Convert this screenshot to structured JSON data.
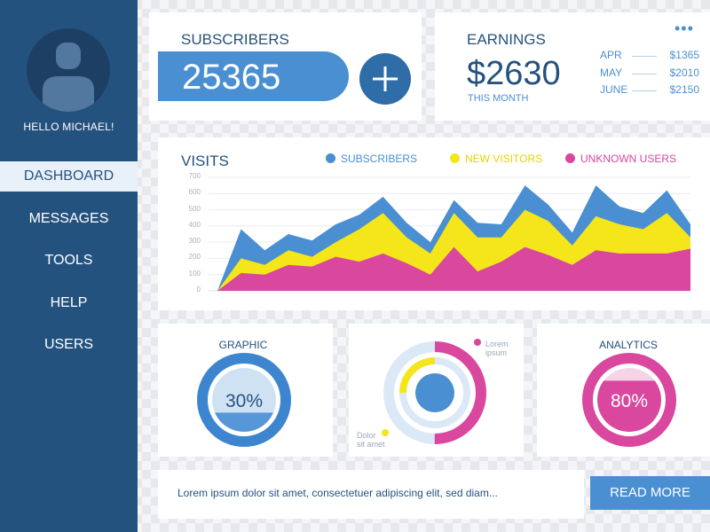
{
  "sidebar": {
    "greeting": "HELLO MICHAEL!",
    "items": [
      {
        "label": "DASHBOARD",
        "active": true
      },
      {
        "label": "MESSAGES",
        "active": false
      },
      {
        "label": "TOOLS",
        "active": false
      },
      {
        "label": "HELP",
        "active": false
      },
      {
        "label": "USERS",
        "active": false
      }
    ]
  },
  "subscribers": {
    "title": "SUBSCRIBERS",
    "value": "25365",
    "add_icon": "plus-icon"
  },
  "earnings": {
    "title": "EARNINGS",
    "value": "$2630",
    "subtitle": "THIS MONTH",
    "rows": [
      {
        "month": "APR",
        "value": "$1365"
      },
      {
        "month": "MAY",
        "value": "$2010"
      },
      {
        "month": "JUNE",
        "value": "$2150"
      }
    ],
    "menu_icon": "more-dots-icon"
  },
  "visits": {
    "title": "VISITS",
    "legend": [
      {
        "label": "SUBSCRIBERS",
        "color": "#4a8fd1"
      },
      {
        "label": "NEW VISITORS",
        "color": "#f4e61a"
      },
      {
        "label": "UNKNOWN USERS",
        "color": "#d9479e"
      }
    ]
  },
  "chart_data": {
    "type": "area",
    "title": "VISITS",
    "xlabel": "",
    "ylabel": "",
    "ylim": [
      0,
      700
    ],
    "yticks": [
      0,
      100,
      200,
      300,
      400,
      500,
      600,
      700
    ],
    "grid": true,
    "legend_position": "top",
    "x": [
      0,
      1,
      2,
      3,
      4,
      5,
      6,
      7,
      8,
      9,
      10,
      11,
      12,
      13,
      14,
      15,
      16,
      17,
      18,
      19,
      20
    ],
    "series": [
      {
        "name": "SUBSCRIBERS",
        "color": "#4a8fd1",
        "values": [
          0,
          380,
          250,
          350,
          310,
          410,
          470,
          580,
          420,
          300,
          560,
          420,
          410,
          650,
          530,
          360,
          650,
          520,
          480,
          620,
          410
        ]
      },
      {
        "name": "NEW VISITORS",
        "color": "#f4e61a",
        "values": [
          0,
          200,
          160,
          250,
          210,
          300,
          380,
          480,
          330,
          230,
          480,
          330,
          330,
          500,
          430,
          280,
          460,
          410,
          380,
          480,
          330
        ]
      },
      {
        "name": "UNKNOWN USERS",
        "color": "#d9479e",
        "values": [
          0,
          110,
          100,
          160,
          150,
          210,
          180,
          230,
          170,
          100,
          270,
          120,
          180,
          270,
          220,
          160,
          250,
          230,
          230,
          230,
          260
        ]
      }
    ]
  },
  "graphic": {
    "title": "GRAPHIC",
    "percent": "30%",
    "fill": 0.3,
    "color": "#4a8fd1"
  },
  "donut": {
    "label_top": [
      "Lorem",
      "ipsum"
    ],
    "label_bottom": [
      "Dolor",
      "sit amet"
    ],
    "outer_fill": 0.5,
    "outer_color": "#d9479e",
    "inner_fill": 0.25,
    "inner_color": "#f4e61a"
  },
  "analytics": {
    "title": "ANALYTICS",
    "percent": "80%",
    "fill": 0.8,
    "color": "#d9479e"
  },
  "footer": {
    "text": "Lorem ipsum dolor sit amet, consectetuer adipiscing elit, sed diam...",
    "button": "READ MORE"
  }
}
